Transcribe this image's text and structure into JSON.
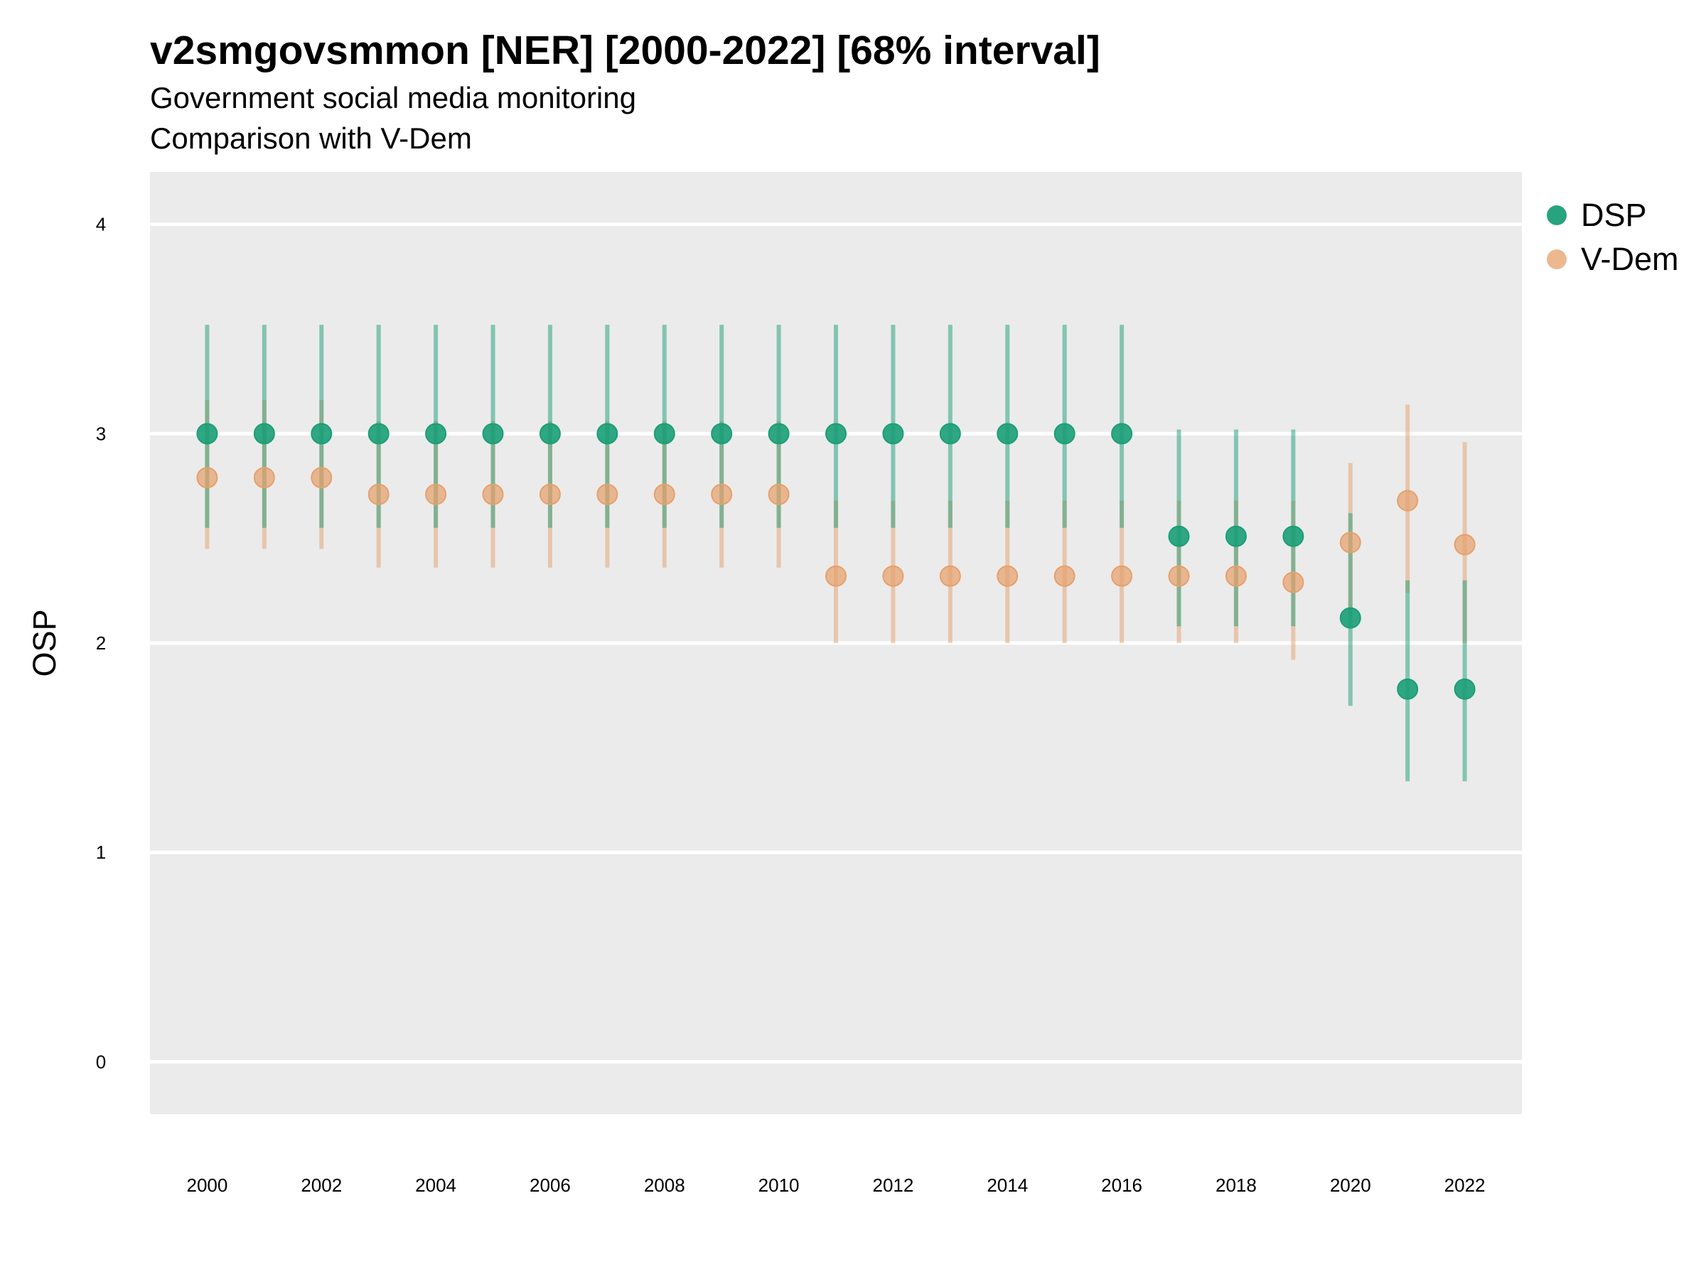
{
  "title": "v2smgovsmmon [NER] [2000-2022] [68% interval]",
  "subtitle_1": "Government social media monitoring",
  "subtitle_2": "Comparison with V-Dem",
  "colors": {
    "DSP": "#1b9e77",
    "V-Dem": "#e6a06b",
    "panel": "#ebebeb",
    "grid": "#ffffff"
  },
  "chart_data": {
    "type": "scatter",
    "ylabel": "OSP",
    "xlabel": "",
    "ylim": [
      -0.25,
      4.25
    ],
    "xlim": [
      1999,
      2023
    ],
    "y_ticks": [
      0,
      1,
      2,
      3,
      4
    ],
    "x_ticks": [
      2000,
      2002,
      2004,
      2006,
      2008,
      2010,
      2012,
      2014,
      2016,
      2018,
      2020,
      2022
    ],
    "grid": true,
    "legend_position": "right",
    "x": [
      2000,
      2001,
      2002,
      2003,
      2004,
      2005,
      2006,
      2007,
      2008,
      2009,
      2010,
      2011,
      2012,
      2013,
      2014,
      2015,
      2016,
      2017,
      2018,
      2019,
      2020,
      2021,
      2022
    ],
    "series": [
      {
        "name": "DSP",
        "color": "#1b9e77",
        "values": [
          3.0,
          3.0,
          3.0,
          3.0,
          3.0,
          3.0,
          3.0,
          3.0,
          3.0,
          3.0,
          3.0,
          3.0,
          3.0,
          3.0,
          3.0,
          3.0,
          3.0,
          2.51,
          2.51,
          2.51,
          2.12,
          1.78,
          1.78
        ],
        "lower": [
          2.55,
          2.55,
          2.55,
          2.55,
          2.55,
          2.55,
          2.55,
          2.55,
          2.55,
          2.55,
          2.55,
          2.55,
          2.55,
          2.55,
          2.55,
          2.55,
          2.55,
          2.08,
          2.08,
          2.08,
          1.7,
          1.34,
          1.34
        ],
        "upper": [
          3.52,
          3.52,
          3.52,
          3.52,
          3.52,
          3.52,
          3.52,
          3.52,
          3.52,
          3.52,
          3.52,
          3.52,
          3.52,
          3.52,
          3.52,
          3.52,
          3.52,
          3.02,
          3.02,
          3.02,
          2.62,
          2.3,
          2.3
        ]
      },
      {
        "name": "V-Dem",
        "color": "#e6a06b",
        "values": [
          2.79,
          2.79,
          2.79,
          2.71,
          2.71,
          2.71,
          2.71,
          2.71,
          2.71,
          2.71,
          2.71,
          2.32,
          2.32,
          2.32,
          2.32,
          2.32,
          2.32,
          2.32,
          2.32,
          2.29,
          2.48,
          2.68,
          2.47
        ],
        "lower": [
          2.45,
          2.45,
          2.45,
          2.36,
          2.36,
          2.36,
          2.36,
          2.36,
          2.36,
          2.36,
          2.36,
          2.0,
          2.0,
          2.0,
          2.0,
          2.0,
          2.0,
          2.0,
          2.0,
          1.92,
          2.13,
          2.24,
          2.0
        ],
        "upper": [
          3.16,
          3.16,
          3.16,
          3.06,
          3.06,
          3.06,
          3.06,
          3.06,
          3.06,
          3.06,
          3.06,
          2.68,
          2.68,
          2.68,
          2.68,
          2.68,
          2.68,
          2.68,
          2.68,
          2.68,
          2.86,
          3.14,
          2.96
        ]
      }
    ]
  }
}
